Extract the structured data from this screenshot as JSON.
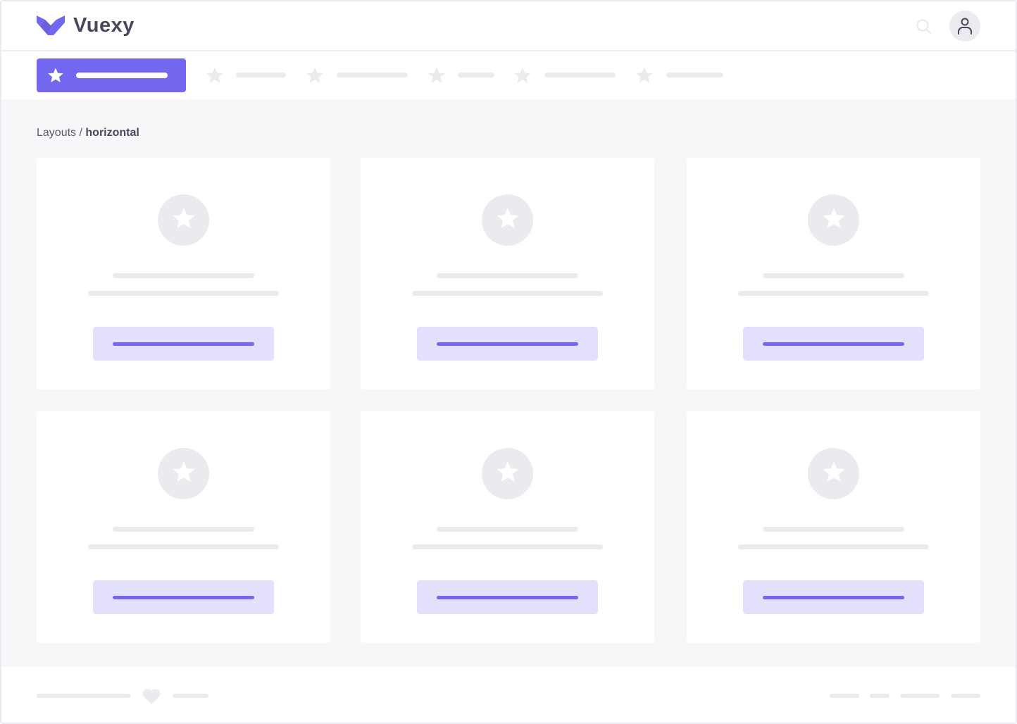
{
  "header": {
    "brand": "Vuexy",
    "logo_icon": "vuexy-logo-icon",
    "search_icon": "search-icon",
    "avatar_icon": "user-icon"
  },
  "nav": {
    "items": [
      {
        "icon": "star-icon",
        "active": true
      },
      {
        "icon": "star-icon"
      },
      {
        "icon": "star-icon"
      },
      {
        "icon": "star-icon"
      },
      {
        "icon": "star-icon"
      },
      {
        "icon": "star-icon"
      }
    ]
  },
  "breadcrumb": {
    "parent": "Layouts",
    "separator": "/",
    "current": "horizontal"
  },
  "cards": {
    "count": 6,
    "icon": "star-icon"
  },
  "footer": {
    "icon": "heart-icon"
  },
  "colors": {
    "primary": "#7367f0",
    "primary_light": "#e3e0fc",
    "placeholder": "#ebebef",
    "background": "#f7f7f9",
    "text": "#4b465c"
  }
}
